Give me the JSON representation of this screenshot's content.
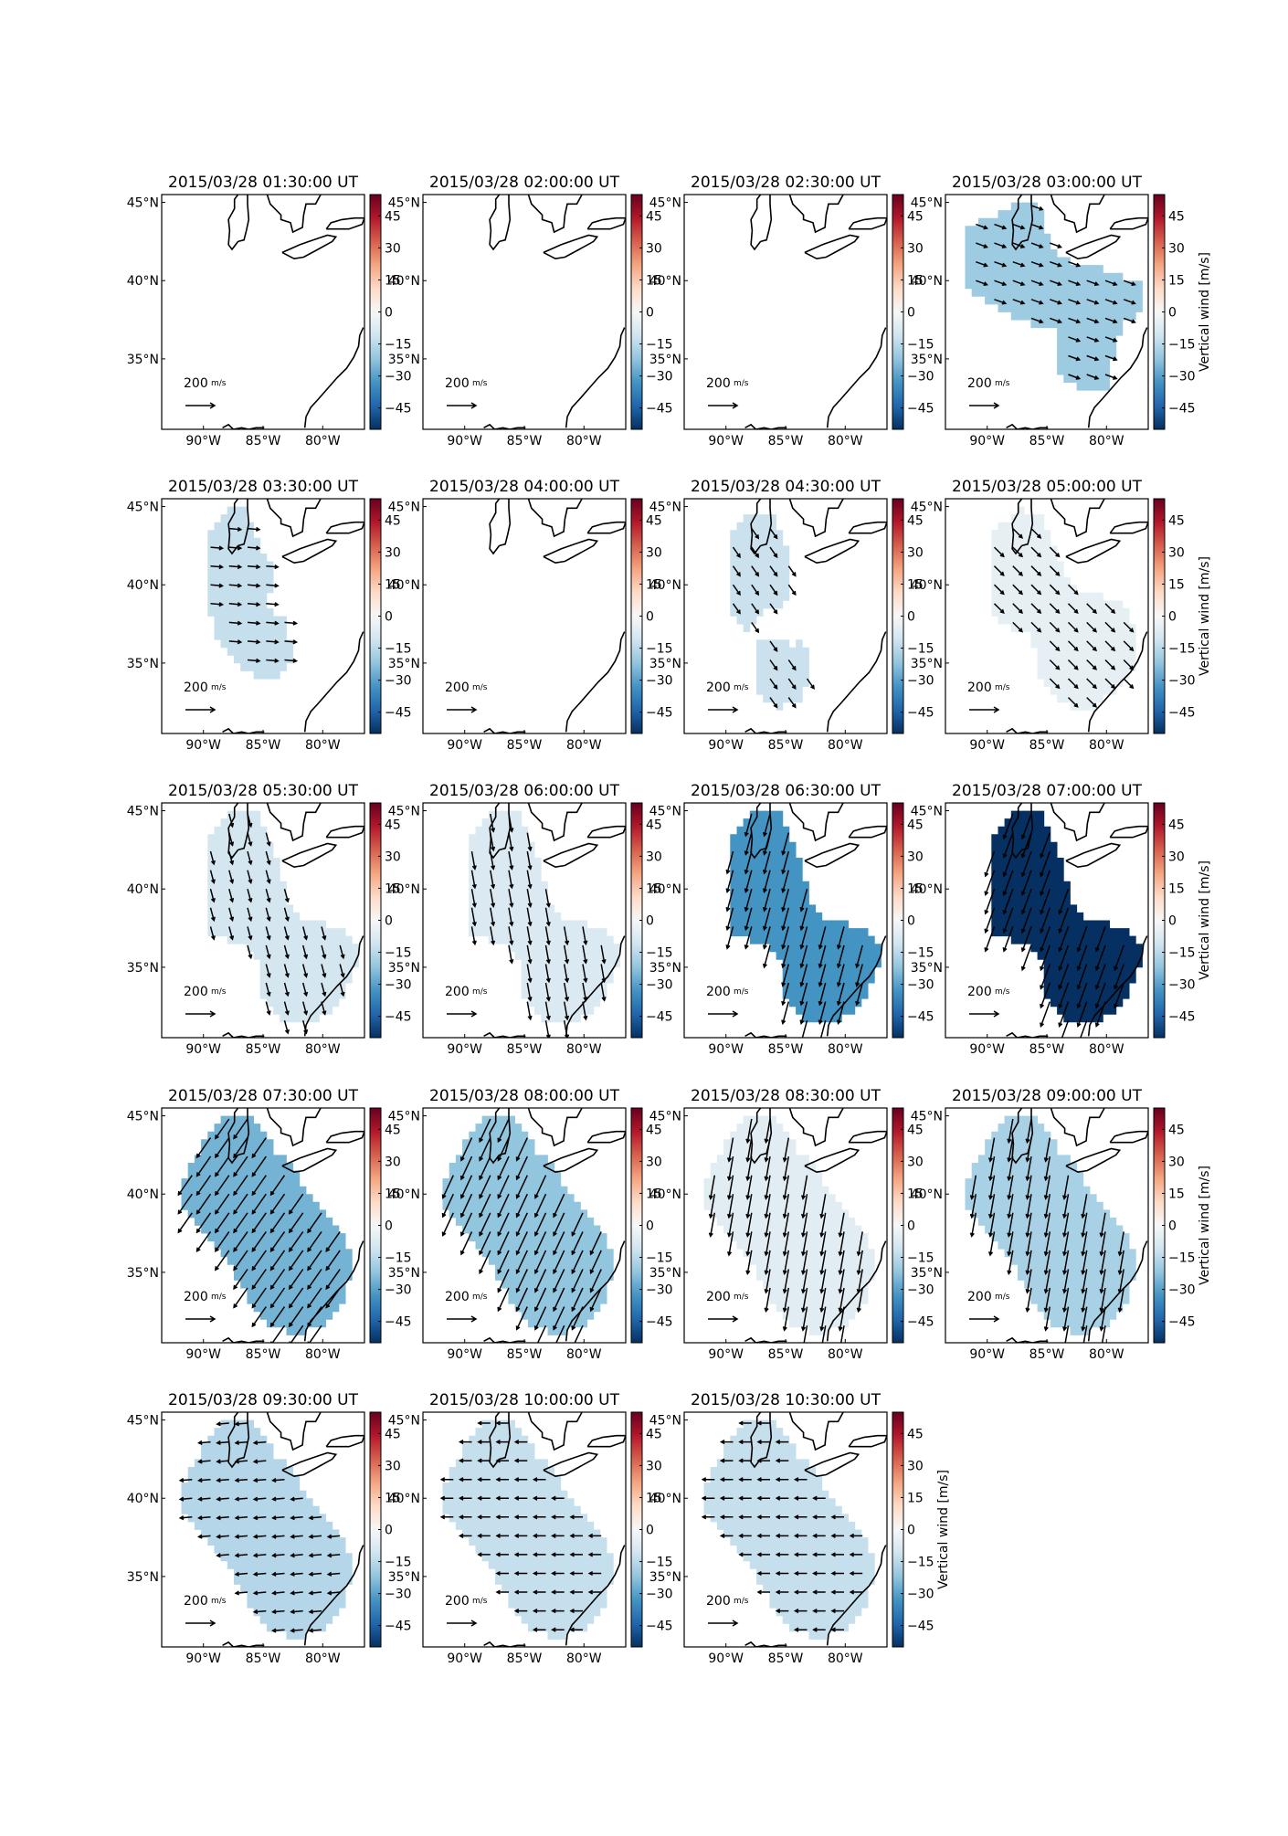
{
  "chart_data": {
    "type": "heatmap",
    "description_type": "map-quiver",
    "colorscale": "RdBu_r",
    "colorbar": {
      "label": "Vertical wind [m/s]",
      "ticks": [
        45,
        30,
        15,
        0,
        -15,
        -30,
        -45
      ],
      "tick_labels": [
        "45",
        "30",
        "15",
        "0",
        "−15",
        "−30",
        "−45"
      ],
      "range": [
        -55,
        55
      ]
    },
    "quiver_key": {
      "label": "200",
      "unit": "m/s",
      "value": 200
    },
    "lon_ticks": [
      -90,
      -85,
      -80
    ],
    "lon_tick_labels": [
      "90°W",
      "85°W",
      "80°W"
    ],
    "lat_ticks": [
      45,
      40,
      35
    ],
    "lat_tick_labels": [
      "45°N",
      "40°N",
      "35°N"
    ],
    "lon_range": [
      -93.5,
      -76.5
    ],
    "lat_range": [
      30.5,
      45.5
    ],
    "panels": [
      {
        "title": "2015/03/28 01:30:00 UT",
        "region": "none",
        "vertical_wind": null,
        "wind_dir": 0,
        "wind_len": 0
      },
      {
        "title": "2015/03/28 02:00:00 UT",
        "region": "none",
        "vertical_wind": null,
        "wind_dir": 0,
        "wind_len": 0
      },
      {
        "title": "2015/03/28 02:30:00 UT",
        "region": "none",
        "vertical_wind": null,
        "wind_dir": 0,
        "wind_len": 0
      },
      {
        "title": "2015/03/28 03:00:00 UT",
        "region": "A",
        "vertical_wind": -20,
        "wind_dir": 20,
        "wind_len": 1.0
      },
      {
        "title": "2015/03/28 03:30:00 UT",
        "region": "B",
        "vertical_wind": -13,
        "wind_dir": 5,
        "wind_len": 1.0
      },
      {
        "title": "2015/03/28 04:00:00 UT",
        "region": "none",
        "vertical_wind": null,
        "wind_dir": 0,
        "wind_len": 0
      },
      {
        "title": "2015/03/28 04:30:00 UT",
        "region": "C",
        "vertical_wind": -12,
        "wind_dir": 55,
        "wind_len": 1.0
      },
      {
        "title": "2015/03/28 05:00:00 UT",
        "region": "D",
        "vertical_wind": -5,
        "wind_dir": 45,
        "wind_len": 1.1
      },
      {
        "title": "2015/03/28 05:30:00 UT",
        "region": "E",
        "vertical_wind": -10,
        "wind_dir": 75,
        "wind_len": 1.1
      },
      {
        "title": "2015/03/28 06:00:00 UT",
        "region": "E",
        "vertical_wind": -8,
        "wind_dir": 80,
        "wind_len": 1.5
      },
      {
        "title": "2015/03/28 06:30:00 UT",
        "region": "E",
        "vertical_wind": -33,
        "wind_dir": 105,
        "wind_len": 1.9
      },
      {
        "title": "2015/03/28 07:00:00 UT",
        "region": "E",
        "vertical_wind": -55,
        "wind_dir": 110,
        "wind_len": 2.2
      },
      {
        "title": "2015/03/28 07:30:00 UT",
        "region": "F",
        "vertical_wind": -26,
        "wind_dir": 125,
        "wind_len": 2.0
      },
      {
        "title": "2015/03/28 08:00:00 UT",
        "region": "F",
        "vertical_wind": -22,
        "wind_dir": 115,
        "wind_len": 2.1
      },
      {
        "title": "2015/03/28 08:30:00 UT",
        "region": "F",
        "vertical_wind": -6,
        "wind_dir": 100,
        "wind_len": 2.0
      },
      {
        "title": "2015/03/28 09:00:00 UT",
        "region": "F",
        "vertical_wind": -18,
        "wind_dir": 100,
        "wind_len": 2.0
      },
      {
        "title": "2015/03/28 09:30:00 UT",
        "region": "F",
        "vertical_wind": -16,
        "wind_dir": 175,
        "wind_len": 1.0
      },
      {
        "title": "2015/03/28 10:00:00 UT",
        "region": "F",
        "vertical_wind": -13,
        "wind_dir": 180,
        "wind_len": 1.0
      },
      {
        "title": "2015/03/28 10:30:00 UT",
        "region": "F",
        "vertical_wind": -13,
        "wind_dir": 180,
        "wind_len": 1.0
      }
    ]
  }
}
